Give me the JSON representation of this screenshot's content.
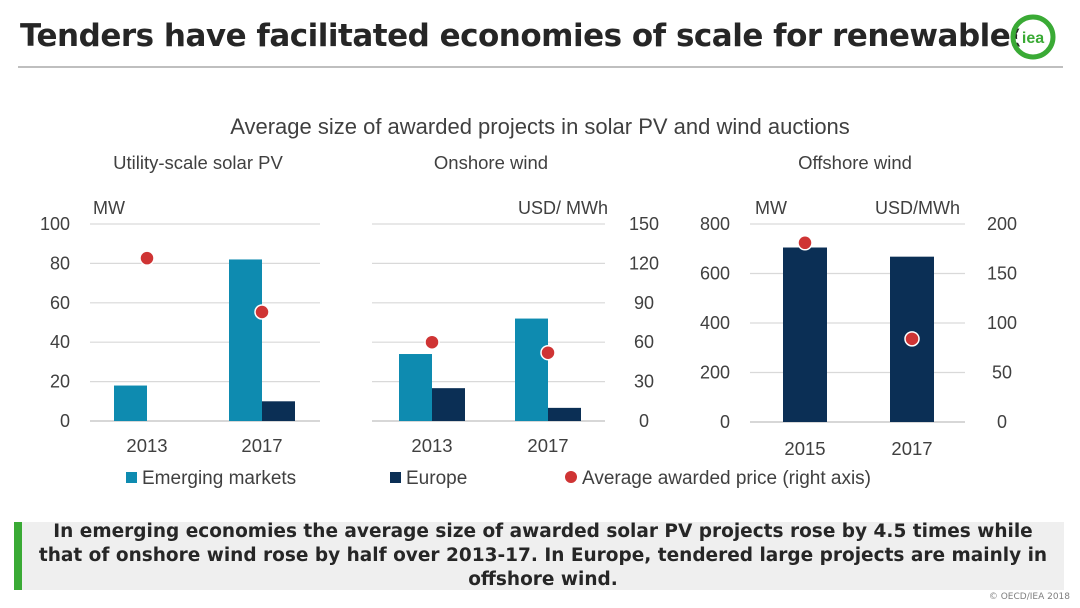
{
  "slide": {
    "title": "Tenders have facilitated economies of scale for renewables",
    "logo_text": "iea",
    "caption": "In emerging economies the average size of awarded solar PV projects rose by 4.5 times while that of onshore wind rose by half over 2013-17. In Europe, tendered large projects are mainly in offshore wind.",
    "copyright": "© OECD/IEA 2018"
  },
  "colors": {
    "emerging": "#0e8bb0",
    "europe": "#0b2f55",
    "price": "#cf3434",
    "grid": "#d9d9d9",
    "text": "#404040",
    "accent_green": "#3aaa35"
  },
  "chart_data": [
    {
      "type": "bar",
      "title": "Utility-scale solar PV",
      "chart_heading": "Average size of awarded projects in solar PV and wind auctions",
      "categories": [
        "2013",
        "2017"
      ],
      "left_axis_label": "MW",
      "left_range": [
        0,
        100
      ],
      "left_ticks": [
        "0",
        "20",
        "40",
        "60",
        "80",
        "100"
      ],
      "right_axis_label": "",
      "right_range": [
        0,
        150
      ],
      "right_ticks": [],
      "series": [
        {
          "name": "Emerging markets",
          "values": [
            18,
            82
          ]
        },
        {
          "name": "Europe",
          "values": [
            null,
            10
          ]
        },
        {
          "name": "Average awarded price (right axis)",
          "axis": "right",
          "values": [
            124,
            83
          ]
        }
      ]
    },
    {
      "type": "bar",
      "title": "Onshore wind",
      "categories": [
        "2013",
        "2017"
      ],
      "left_axis_label": "",
      "left_range": [
        0,
        150
      ],
      "left_ticks": [],
      "right_axis_label": "USD/ MWh",
      "right_range": [
        0,
        150
      ],
      "right_ticks": [
        "0",
        "30",
        "60",
        "90",
        "120",
        "150"
      ],
      "series": [
        {
          "name": "Emerging markets",
          "values": [
            51,
            78
          ]
        },
        {
          "name": "Europe",
          "values": [
            25,
            10
          ]
        },
        {
          "name": "Average awarded price (right axis)",
          "axis": "right",
          "values": [
            60,
            52
          ]
        }
      ]
    },
    {
      "type": "bar",
      "title": "Offshore wind",
      "categories": [
        "2015",
        "2017"
      ],
      "left_axis_label": "MW",
      "left_range": [
        0,
        800
      ],
      "left_ticks": [
        "0",
        "200",
        "400",
        "600",
        "800"
      ],
      "right_axis_label": "USD/MWh",
      "right_range": [
        0,
        200
      ],
      "right_ticks": [
        "0",
        "50",
        "100",
        "150",
        "200"
      ],
      "series": [
        {
          "name": "Europe",
          "values": [
            705,
            668
          ]
        },
        {
          "name": "Average awarded price (right axis)",
          "axis": "right",
          "values": [
            181,
            84
          ]
        }
      ]
    }
  ],
  "legend": [
    {
      "name": "Emerging markets",
      "shape": "square",
      "color_key": "emerging"
    },
    {
      "name": "Europe",
      "shape": "square",
      "color_key": "europe"
    },
    {
      "name": "Average awarded price (right axis)",
      "shape": "circle",
      "color_key": "price"
    }
  ]
}
